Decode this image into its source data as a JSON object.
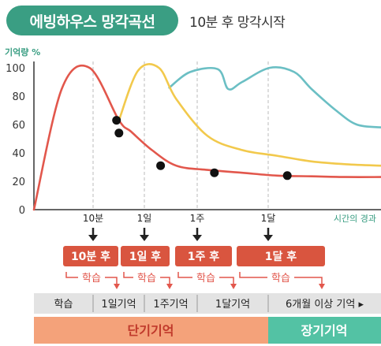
{
  "header": {
    "title": "에빙하우스 망각곡선",
    "subtitle": "10분 후 망각시작"
  },
  "colors": {
    "accent_green": "#3a9e83",
    "red": "#e2574c",
    "yellow": "#f2c94c",
    "teal": "#6bbfc4",
    "short_term_orange": "#f4a27a",
    "long_term_teal": "#53c2a4",
    "label_red_box": "#d9553f"
  },
  "chart_data": {
    "type": "line",
    "title": "에빙하우스 망각곡선",
    "ylabel": "기억량 %",
    "xlabel": "시간의 경과",
    "ylim": [
      0,
      100
    ],
    "yticks": [
      0,
      20,
      40,
      60,
      80,
      100
    ],
    "x_ticks": [
      "10분",
      "1일",
      "1주",
      "1달"
    ],
    "series": [
      {
        "name": "red",
        "color": "#e2574c",
        "points": [
          [
            0,
            0
          ],
          [
            0.08,
            85
          ],
          [
            0.16,
            100
          ],
          [
            0.245,
            63
          ],
          [
            0.28,
            55
          ],
          [
            0.34,
            42
          ],
          [
            0.41,
            31
          ],
          [
            0.5,
            28
          ],
          [
            0.6,
            26
          ],
          [
            0.7,
            24
          ],
          [
            0.8,
            23.5
          ],
          [
            0.9,
            23
          ],
          [
            1.0,
            23
          ]
        ]
      },
      {
        "name": "yellow",
        "color": "#f2c94c",
        "points": [
          [
            0.245,
            63
          ],
          [
            0.3,
            98
          ],
          [
            0.36,
            100
          ],
          [
            0.41,
            78
          ],
          [
            0.5,
            52
          ],
          [
            0.6,
            42
          ],
          [
            0.7,
            38
          ],
          [
            0.8,
            34
          ],
          [
            0.9,
            32
          ],
          [
            1.0,
            31
          ]
        ]
      },
      {
        "name": "teal",
        "color": "#6bbfc4",
        "points": [
          [
            0.39,
            86
          ],
          [
            0.45,
            97
          ],
          [
            0.53,
            99
          ],
          [
            0.56,
            85
          ],
          [
            0.6,
            90
          ],
          [
            0.68,
            100
          ],
          [
            0.75,
            97
          ],
          [
            0.8,
            85
          ],
          [
            0.87,
            70
          ],
          [
            0.93,
            60
          ],
          [
            1.0,
            58
          ]
        ]
      }
    ],
    "points": [
      {
        "x": 0.238,
        "y": 63
      },
      {
        "x": 0.245,
        "y": 54
      },
      {
        "x": 0.365,
        "y": 31
      },
      {
        "x": 0.52,
        "y": 26
      },
      {
        "x": 0.73,
        "y": 24
      }
    ]
  },
  "review": {
    "times": [
      "10분 후",
      "1일 후",
      "1주 후",
      "1달 후"
    ],
    "study_label": "학습"
  },
  "memory_bar": {
    "segments": [
      "학습",
      "1일기억",
      "1주기억",
      "1달기억",
      "6개월 이상 기억 ▸"
    ],
    "short_term": "단기기억",
    "long_term": "장기기억"
  }
}
